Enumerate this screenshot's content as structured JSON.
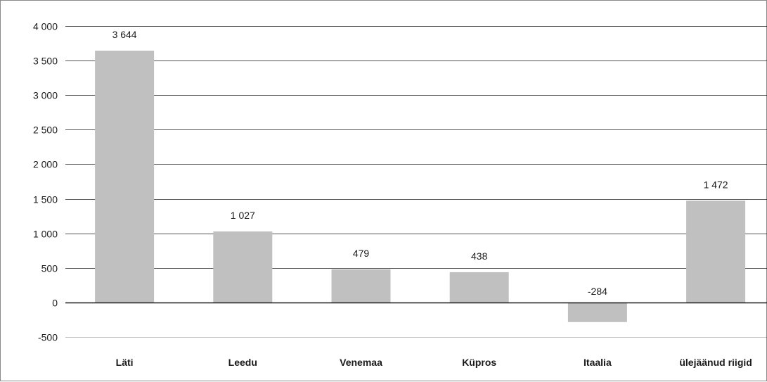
{
  "chart_data": {
    "type": "bar",
    "categories": [
      "Läti",
      "Leedu",
      "Venemaa",
      "Küpros",
      "Itaalia",
      "ülejäänud riigid"
    ],
    "values": [
      3644,
      1027,
      479,
      438,
      -284,
      1472
    ],
    "data_labels": [
      "3 644",
      "1 027",
      "479",
      "438",
      "-284",
      "1 472"
    ],
    "y_ticks": [
      -500,
      0,
      500,
      1000,
      1500,
      2000,
      2500,
      3000,
      3500,
      4000
    ],
    "y_tick_labels": [
      "-500",
      "0",
      "500",
      "1 000",
      "1 500",
      "2 000",
      "2 500",
      "3 000",
      "3 500",
      "4 000"
    ],
    "ylim": [
      -500,
      4000
    ],
    "grid": true,
    "legend": "none",
    "title": "",
    "xlabel": "",
    "ylabel": "",
    "colors": {
      "bar": "#c0c0c0",
      "grid": "#1a1a1a",
      "text": "#1a1a1a"
    }
  }
}
